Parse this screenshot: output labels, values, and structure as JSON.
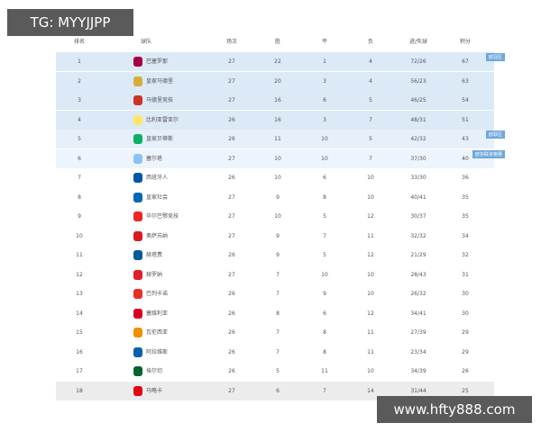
{
  "watermarks": {
    "top": "TG: MYYJJPP",
    "bottom": "www.hfty888.com"
  },
  "table": {
    "header": [
      "排名",
      "球队",
      "场次",
      "胜",
      "平",
      "负",
      "进/失球",
      "积分"
    ],
    "rows": [
      [
        1,
        "巴塞罗那",
        27,
        22,
        1,
        4,
        "72/26",
        67
      ],
      [
        2,
        "皇家马德里",
        27,
        20,
        3,
        4,
        "56/23",
        63
      ],
      [
        3,
        "马德里竞技",
        27,
        16,
        6,
        5,
        "46/25",
        54
      ],
      [
        4,
        "比利亚雷亚尔",
        26,
        16,
        3,
        7,
        "48/31",
        51
      ],
      [
        5,
        "皇家贝蒂斯",
        26,
        11,
        10,
        5,
        "42/32",
        43
      ],
      [
        6,
        "塞尔塔",
        27,
        10,
        10,
        7,
        "37/30",
        40
      ],
      [
        7,
        "西班牙人",
        26,
        10,
        6,
        10,
        "33/30",
        36
      ],
      [
        8,
        "皇家社会",
        27,
        9,
        8,
        10,
        "40/41",
        35
      ],
      [
        9,
        "毕尔巴鄂竞技",
        27,
        10,
        5,
        12,
        "30/37",
        35
      ],
      [
        10,
        "奥萨苏纳",
        27,
        9,
        7,
        11,
        "32/32",
        34
      ],
      [
        11,
        "赫塔费",
        26,
        9,
        5,
        12,
        "21/29",
        32
      ],
      [
        12,
        "赫罗纳",
        27,
        7,
        10,
        10,
        "28/43",
        31
      ],
      [
        13,
        "巴列卡诺",
        26,
        7,
        9,
        10,
        "26/32",
        30
      ],
      [
        14,
        "塞维利亚",
        26,
        8,
        6,
        12,
        "34/41",
        30
      ],
      [
        15,
        "瓦伦西亚",
        26,
        7,
        8,
        11,
        "27/39",
        29
      ],
      [
        16,
        "阿拉维斯",
        26,
        7,
        8,
        11,
        "23/34",
        29
      ],
      [
        17,
        "埃尔切",
        26,
        5,
        11,
        10,
        "34/39",
        26
      ],
      [
        18,
        "马略卡",
        27,
        6,
        7,
        14,
        "31/44",
        25
      ]
    ],
    "zone_labels": [
      "欧冠区",
      "欧联区",
      "欧协联资格赛"
    ]
  }
}
